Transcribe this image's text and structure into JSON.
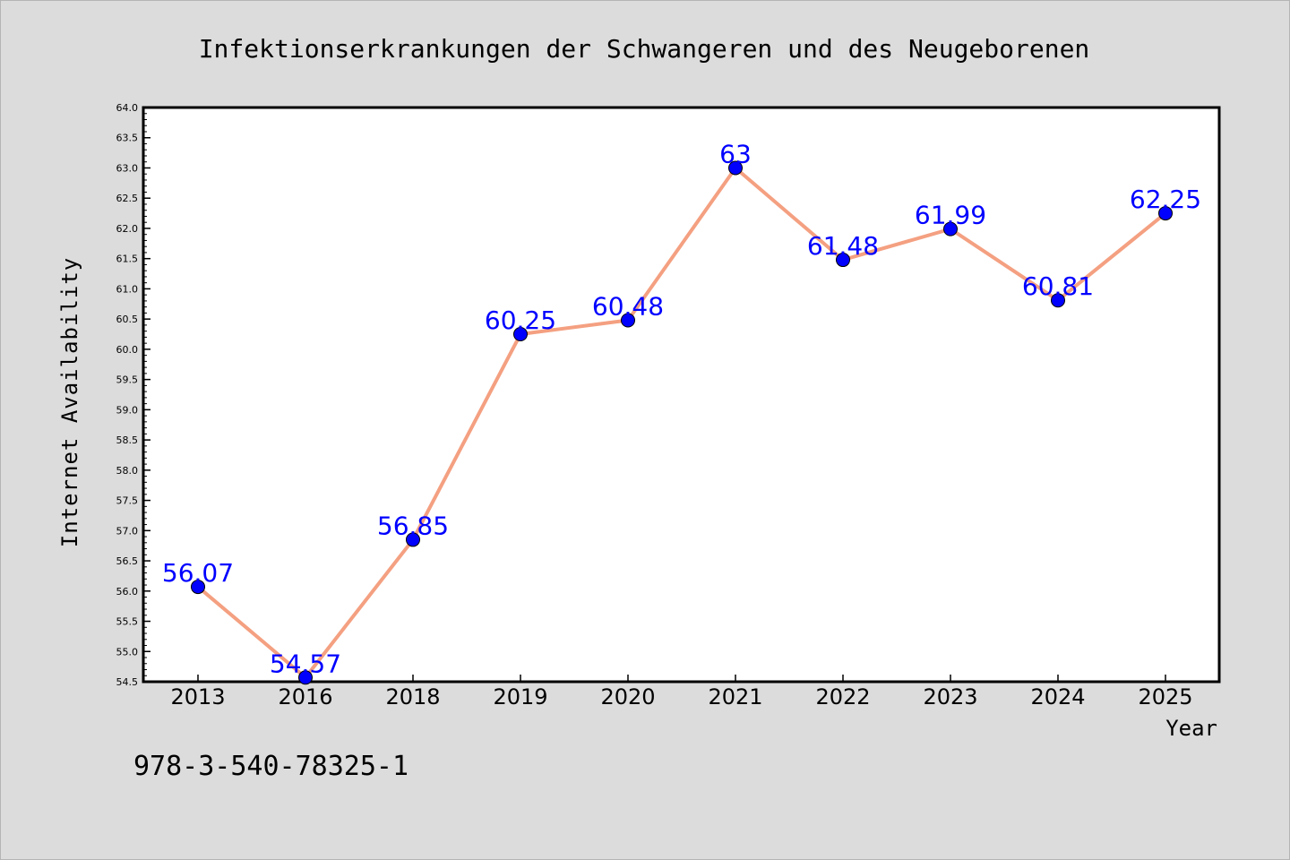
{
  "chart_data": {
    "type": "line",
    "title": "Infektionserkrankungen der Schwangeren und des Neugeborenen",
    "xlabel": "Year",
    "ylabel": "Internet Availability",
    "categories": [
      "2013",
      "2016",
      "2018",
      "2019",
      "2020",
      "2021",
      "2022",
      "2023",
      "2024",
      "2025"
    ],
    "values": [
      56.07,
      54.57,
      56.85,
      60.25,
      60.48,
      63,
      61.48,
      61.99,
      60.81,
      62.25
    ],
    "data_labels": [
      "56.07",
      "54.57",
      "56.85",
      "60.25",
      "60.48",
      "63",
      "61.48",
      "61.99",
      "60.81",
      "62.25"
    ],
    "ylim": [
      54.5,
      64.0
    ],
    "y_ticks": [
      "54.5",
      "55.0",
      "55.5",
      "56.0",
      "56.5",
      "57.0",
      "57.5",
      "58.0",
      "58.5",
      "59.0",
      "59.5",
      "60.0",
      "60.5",
      "61.0",
      "61.5",
      "62.0",
      "62.5",
      "63.0",
      "63.5",
      "64.0"
    ],
    "grid": false,
    "legend": "none",
    "colors": {
      "line": "#f4a081",
      "marker": "#0000ff",
      "data_label": "#0000ff",
      "figure_background": "#dcdcdc",
      "plot_background": "#ffffff"
    }
  },
  "footer": {
    "isbn": "978-3-540-78325-1"
  }
}
